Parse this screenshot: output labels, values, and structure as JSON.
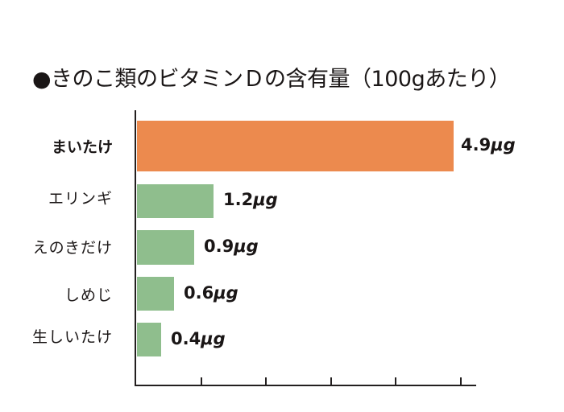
{
  "chart_data": {
    "type": "bar",
    "orientation": "horizontal",
    "title": "●きのこ類のビタミンDの含有量(100gあたり)",
    "xlabel": "",
    "ylabel": "",
    "unit": "μg",
    "categories": [
      "まいたけ",
      "エリンギ",
      "えのきだけ",
      "しめじ",
      "生しいたけ"
    ],
    "values": [
      4.9,
      1.2,
      0.9,
      0.6,
      0.4
    ],
    "value_labels": [
      "4.9μg",
      "1.2μg",
      "0.9μg",
      "0.6μg",
      "0.4μg"
    ],
    "highlight_index": 0,
    "colors": {
      "highlight": "#EC8A4E",
      "default": "#8FBE8D",
      "axis": "#231F1F",
      "text": "#1A1616"
    },
    "xlim": [
      0,
      5.25
    ],
    "x_ticks": [
      1,
      2,
      3,
      4,
      5
    ],
    "x_tick_labels_shown": false,
    "grid": false,
    "legend": null
  },
  "title": "●きのこ類のビタミンＤの含有量（100gあたり）",
  "rows": [
    {
      "label": "まいたけ",
      "value": "4.9",
      "unit": "μg"
    },
    {
      "label": "エリンギ",
      "value": "1.2",
      "unit": "μg"
    },
    {
      "label": "えのきだけ",
      "value": "0.9",
      "unit": "μg"
    },
    {
      "label": "しめじ",
      "value": "0.6",
      "unit": "μg"
    },
    {
      "label": "生しいたけ",
      "value": "0.4",
      "unit": "μg"
    }
  ]
}
